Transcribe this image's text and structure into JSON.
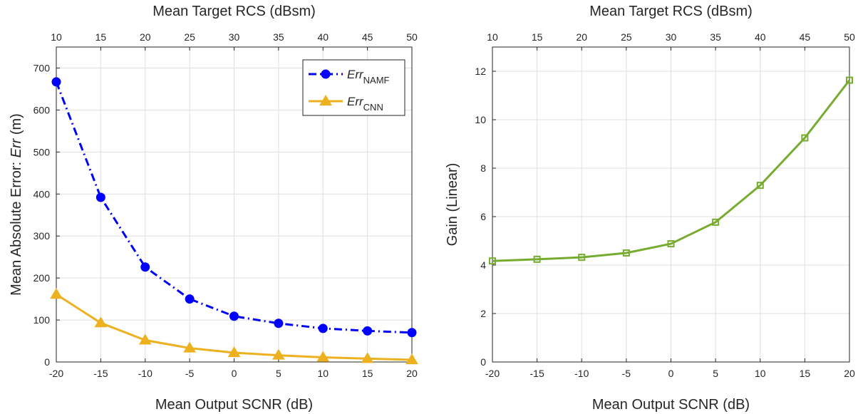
{
  "chart_data": [
    {
      "type": "line",
      "xlabel": "Mean Output SCNR (dB)",
      "x2label": "Mean Target RCS (dBsm)",
      "ylabel_prefix": "Mean Absolute Error: ",
      "ylabel_var": "Err",
      "ylabel_suffix": " (m)",
      "x": [
        -20,
        -15,
        -10,
        -5,
        0,
        5,
        10,
        15,
        20
      ],
      "xlim": [
        -20,
        20
      ],
      "x_ticks": [
        "-20",
        "-15",
        "-10",
        "-5",
        "0",
        "5",
        "10",
        "15",
        "20"
      ],
      "x2_ticks": [
        "10",
        "15",
        "20",
        "25",
        "30",
        "35",
        "40",
        "45",
        "50"
      ],
      "ylim": [
        0,
        750
      ],
      "y_ticks": [
        0,
        100,
        200,
        300,
        400,
        500,
        600,
        700
      ],
      "grid": true,
      "legend_position": "top-right",
      "series": [
        {
          "name_main": "Err",
          "name_sub": "NAMF",
          "color": "#0000ff",
          "marker": "circle",
          "line_style": "dash-dot",
          "values": [
            667,
            392,
            226,
            150,
            109,
            92,
            80,
            74,
            70
          ]
        },
        {
          "name_main": "Err",
          "name_sub": "CNN",
          "color": "#edb120",
          "marker": "triangle",
          "line_style": "solid",
          "values": [
            161,
            93,
            52,
            33,
            22,
            16,
            11,
            8,
            5
          ]
        }
      ]
    },
    {
      "type": "line",
      "xlabel": "Mean Output SCNR (dB)",
      "x2label": "Mean Target RCS (dBsm)",
      "ylabel": "Gain (Linear)",
      "x": [
        -20,
        -15,
        -10,
        -5,
        0,
        5,
        10,
        15,
        20
      ],
      "xlim": [
        -20,
        20
      ],
      "x_ticks": [
        "-20",
        "-15",
        "-10",
        "-5",
        "0",
        "5",
        "10",
        "15",
        "20"
      ],
      "x2_ticks": [
        "10",
        "15",
        "20",
        "25",
        "30",
        "35",
        "40",
        "45",
        "50"
      ],
      "ylim": [
        0,
        13
      ],
      "y_ticks": [
        0,
        2,
        4,
        6,
        8,
        10,
        12
      ],
      "grid": true,
      "series": [
        {
          "color": "#77ac30",
          "marker": "square",
          "line_style": "solid",
          "values": [
            4.17,
            4.24,
            4.32,
            4.5,
            4.88,
            5.77,
            7.29,
            9.25,
            11.63
          ]
        }
      ]
    }
  ]
}
